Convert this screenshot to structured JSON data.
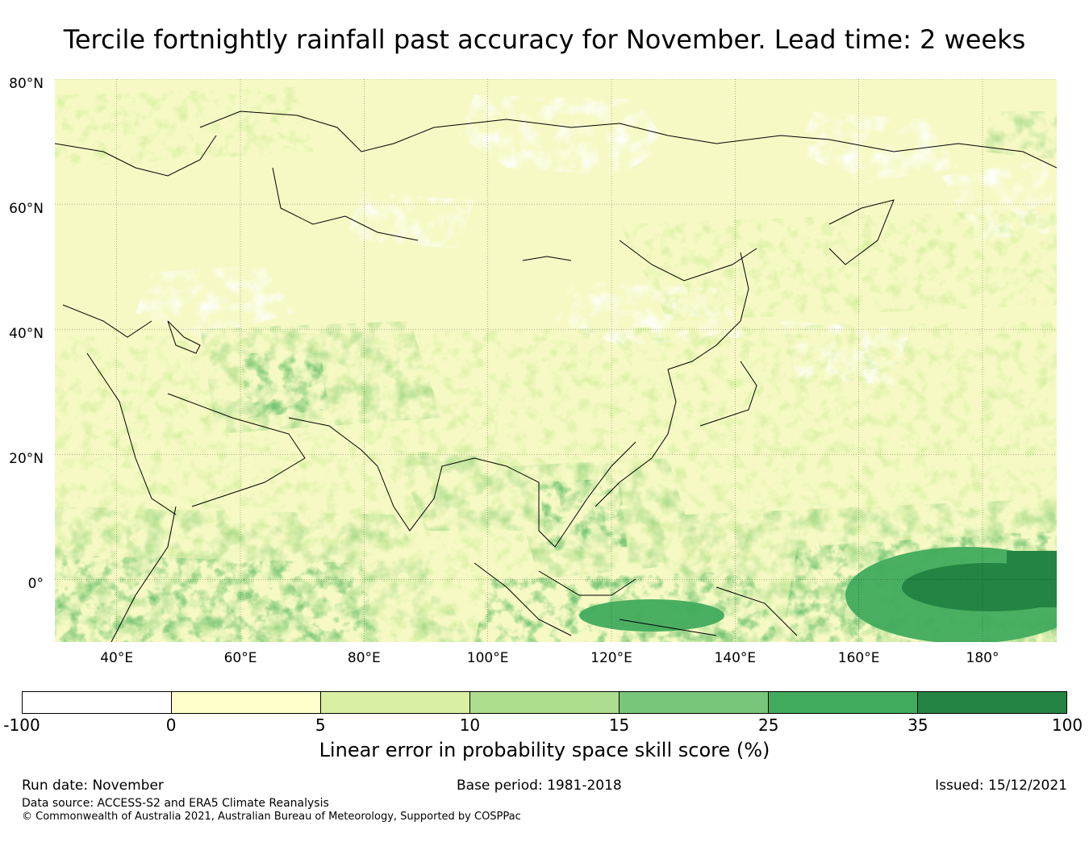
{
  "title": "Tercile fortnightly rainfall past accuracy for November. Lead time: 2 weeks",
  "map": {
    "extent": {
      "lon_min": 30,
      "lon_max": 192,
      "lat_min": -10,
      "lat_max": 80
    },
    "lat_labels": [
      {
        "lat": 80,
        "text": "80°N"
      },
      {
        "lat": 60,
        "text": "60°N"
      },
      {
        "lat": 40,
        "text": "40°N"
      },
      {
        "lat": 20,
        "text": "20°N"
      },
      {
        "lat": 0,
        "text": "0°"
      }
    ],
    "lon_labels": [
      {
        "lon": 40,
        "text": "40°E"
      },
      {
        "lon": 60,
        "text": "60°E"
      },
      {
        "lon": 80,
        "text": "80°E"
      },
      {
        "lon": 100,
        "text": "100°E"
      },
      {
        "lon": 120,
        "text": "120°E"
      },
      {
        "lon": 140,
        "text": "140°E"
      },
      {
        "lon": 160,
        "text": "160°E"
      },
      {
        "lon": 180,
        "text": "180°"
      }
    ]
  },
  "colorbar": {
    "ticks": [
      "-100",
      "0",
      "5",
      "10",
      "15",
      "25",
      "35",
      "100"
    ],
    "colors": [
      "#ffffff",
      "#ffffcc",
      "#d9f0a3",
      "#addd8e",
      "#78c679",
      "#41ab5d",
      "#238443"
    ],
    "label": "Linear error in probability space skill score (%)"
  },
  "footer": {
    "run_date": "Run date: November",
    "base_period": "Base period: 1981-2018",
    "issued": "Issued: 15/12/2021",
    "data_source": "Data source: ACCESS-S2 and ERA5 Climate Reanalysis",
    "copyright": "© Commonwealth of Australia 2021, Australian Bureau of Meteorology, Supported by COSPPac"
  }
}
